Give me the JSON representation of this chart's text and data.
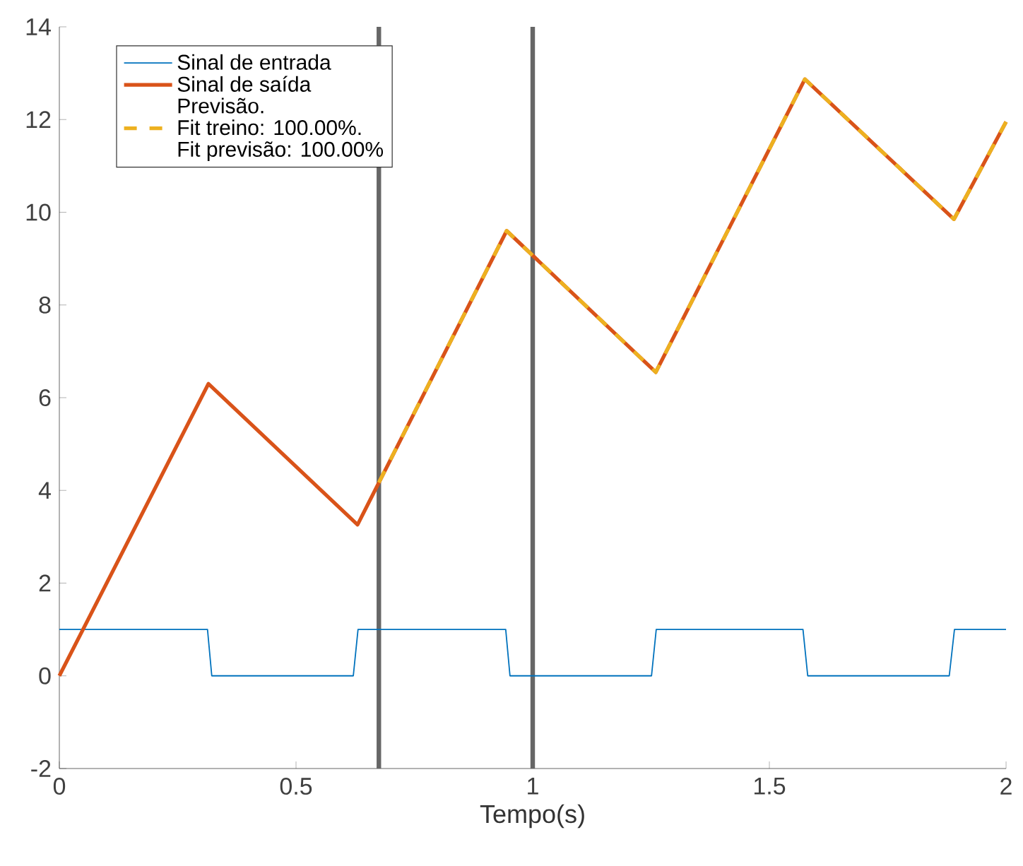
{
  "chart_data": {
    "type": "line",
    "xlabel": "Tempo(s)",
    "xlim": [
      0,
      2
    ],
    "ylim": [
      -2,
      14
    ],
    "xticks": [
      0,
      0.5,
      1,
      1.5,
      2
    ],
    "yticks": [
      -2,
      0,
      2,
      4,
      6,
      8,
      10,
      12,
      14
    ],
    "legend": "top left",
    "grid": false,
    "series": [
      {
        "name": "Sinal de entrada",
        "color": "#0072bd",
        "line_style": "solid",
        "x": [
          0,
          0.313,
          0.322,
          0.621,
          0.631,
          0.943,
          0.952,
          1.251,
          1.261,
          1.571,
          1.581,
          1.88,
          1.891,
          2
        ],
        "values": [
          1,
          1,
          0,
          0,
          1,
          1,
          0,
          0,
          1,
          1,
          0,
          0,
          1,
          1
        ]
      },
      {
        "name": "Sinal de saída",
        "color": "#d95319",
        "line_style": "solid",
        "x": [
          0,
          0.315,
          0.63,
          0.945,
          1.26,
          1.575,
          1.89,
          2
        ],
        "values": [
          0,
          6.3,
          3.26,
          9.6,
          6.55,
          12.87,
          9.85,
          11.95
        ]
      },
      {
        "name": "Fit treino: 100.00%.",
        "color": "#edb120",
        "line_style": "dashed",
        "x": [
          0.675,
          0.945,
          1.26,
          1.575,
          1.89,
          2
        ],
        "values": [
          4.17,
          9.6,
          6.55,
          12.87,
          9.85,
          11.95
        ]
      }
    ],
    "annotations": [
      "Previsão.",
      "Fit previsão: 100.00%"
    ],
    "ref_lines": [
      {
        "axis": "x",
        "value": 0.675,
        "color": "#666666"
      },
      {
        "axis": "x",
        "value": 1,
        "color": "#666666"
      }
    ]
  }
}
